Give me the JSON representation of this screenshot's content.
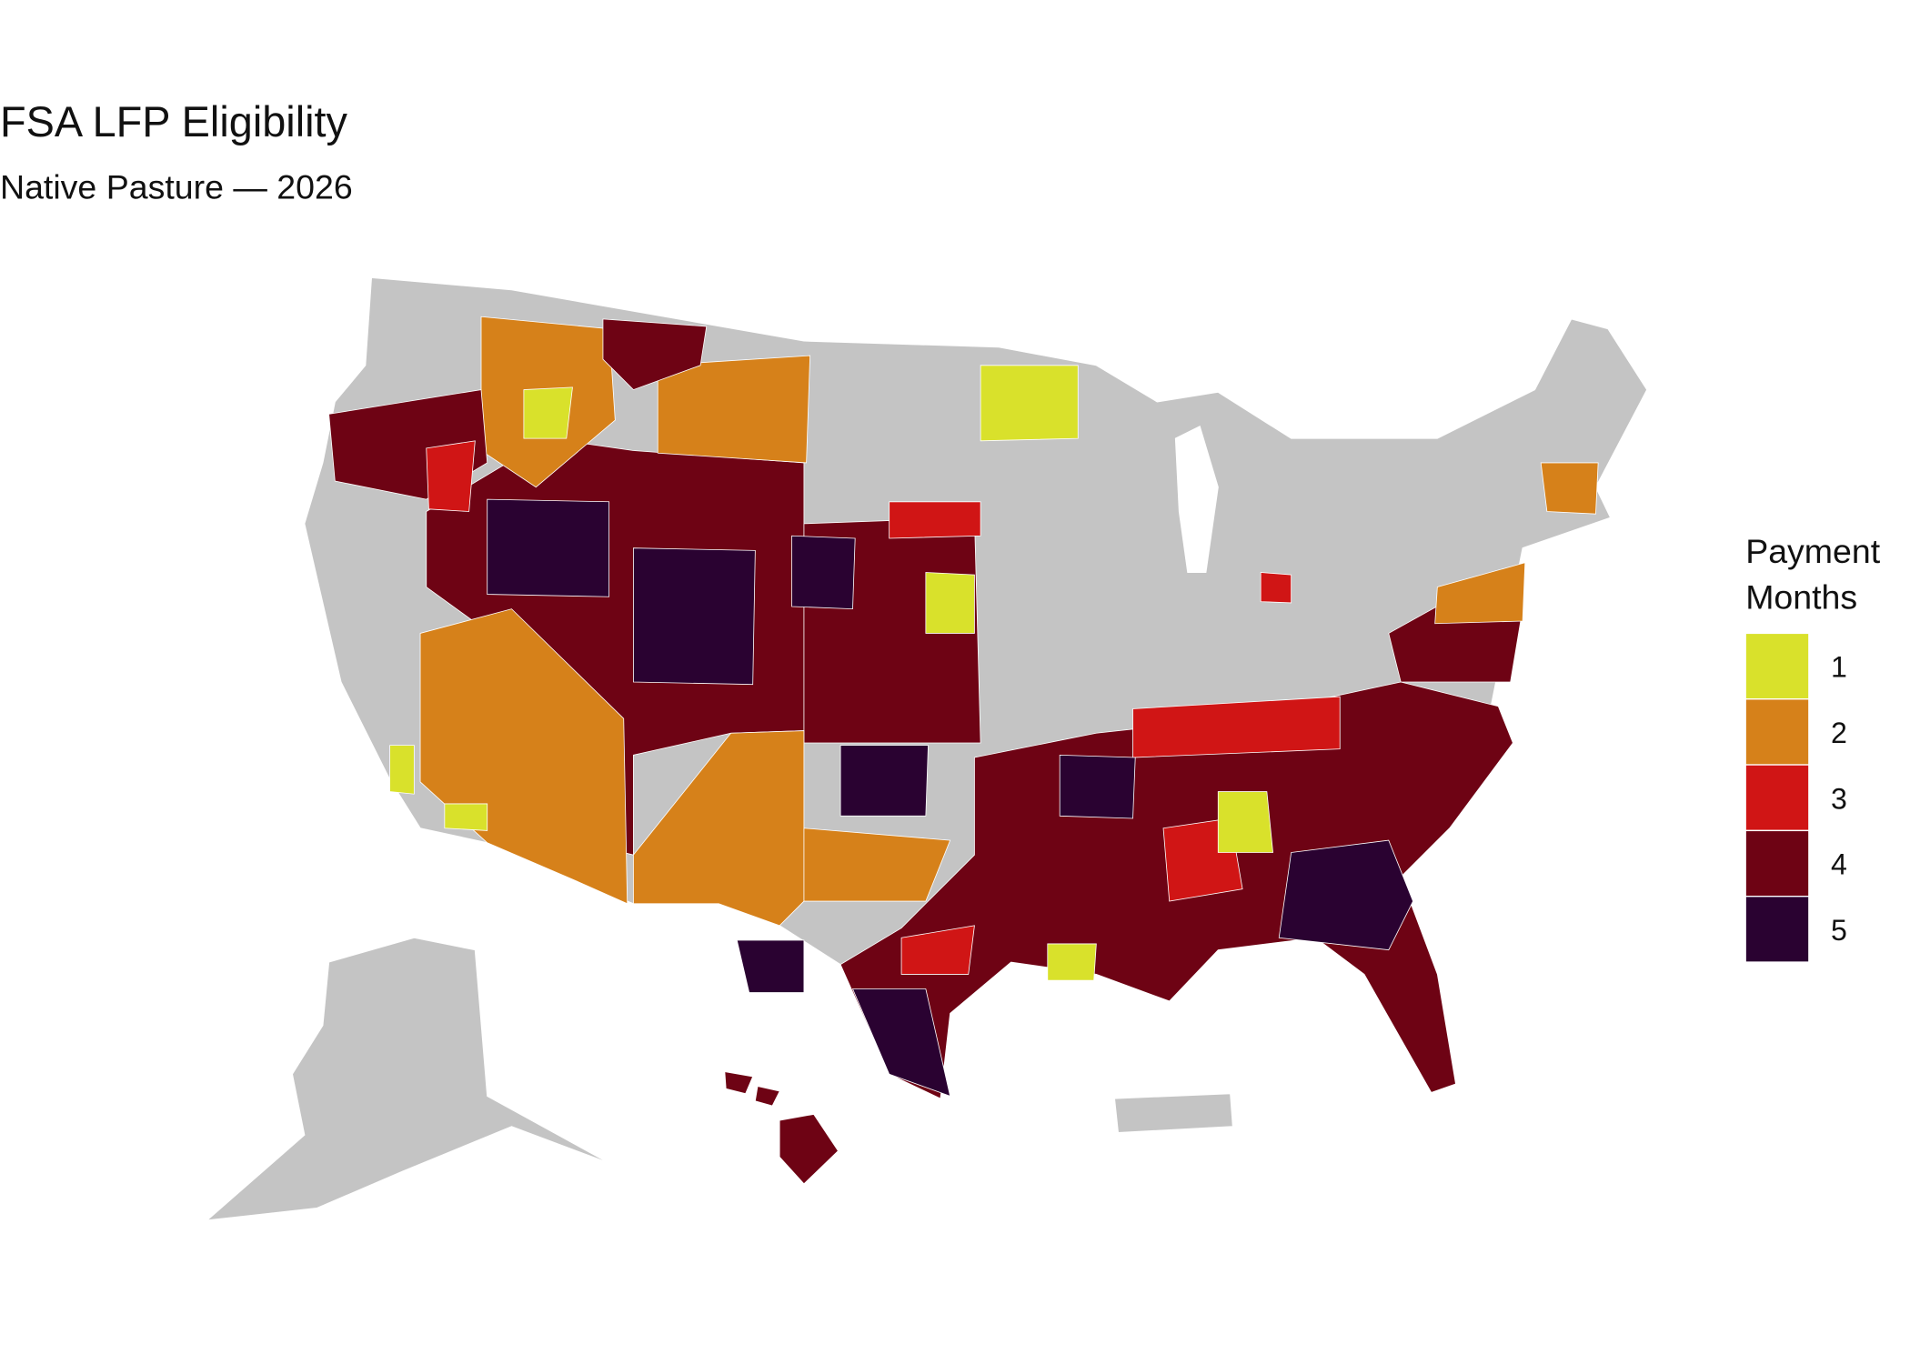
{
  "title": "FSA LFP Eligibility",
  "subtitle": "Native Pasture — 2026",
  "legend": {
    "title_lines": [
      "Payment",
      "Months"
    ],
    "items": [
      {
        "label": "1",
        "color": "#d9e12b"
      },
      {
        "label": "2",
        "color": "#d6811a"
      },
      {
        "label": "3",
        "color": "#d01515"
      },
      {
        "label": "4",
        "color": "#6e0314"
      },
      {
        "label": "5",
        "color": "#2a0231"
      }
    ]
  }
}
